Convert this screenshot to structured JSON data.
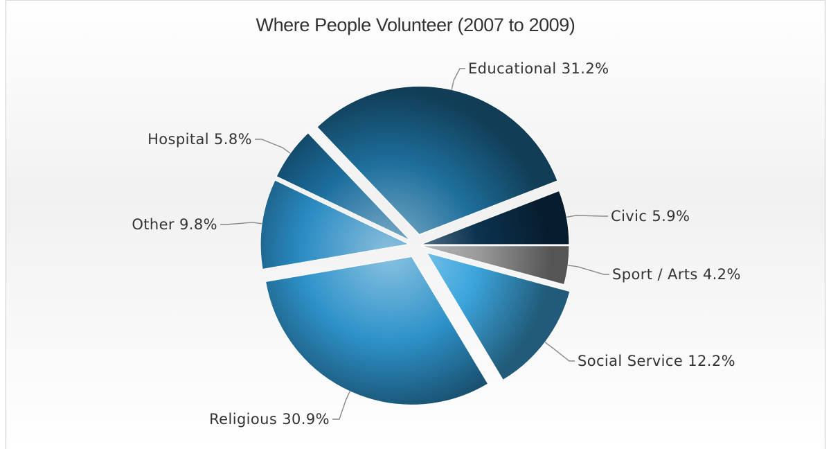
{
  "chart_data": {
    "type": "pie",
    "title": "Where People Volunteer (2007 to 2009)",
    "slices": [
      {
        "name": "Civic",
        "value": 5.9,
        "label": "Civic 5.9%",
        "color": "#0c3350"
      },
      {
        "name": "Educational",
        "value": 31.2,
        "label": "Educational 31.2%",
        "color": "#1e6f9c"
      },
      {
        "name": "Hospital",
        "value": 5.8,
        "label": "Hospital 5.8%",
        "color": "#1c6e9e"
      },
      {
        "name": "Other",
        "value": 9.8,
        "label": "Other 9.8%",
        "color": "#2a8bc2"
      },
      {
        "name": "Religious",
        "value": 30.9,
        "label": "Religious 30.9%",
        "color": "#2e92c9"
      },
      {
        "name": "Social Service",
        "value": 12.2,
        "label": "Social Service 12.2%",
        "color": "#3ca5dc"
      },
      {
        "name": "Sport / Arts",
        "value": 4.2,
        "label": "Sport / Arts 4.2%",
        "color": "#9a9a9a"
      }
    ],
    "legend": "none",
    "labels": "outside with leader lines"
  }
}
